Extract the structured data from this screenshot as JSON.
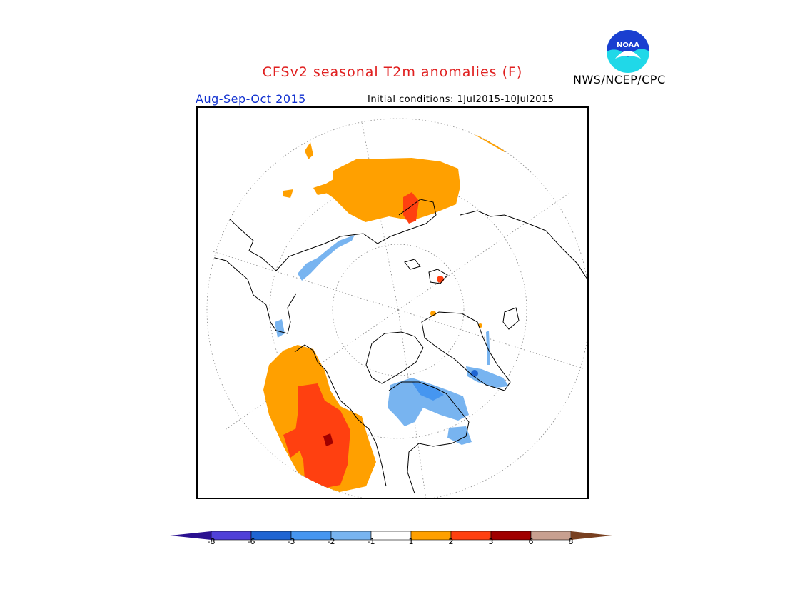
{
  "title": "CFSv2 seasonal T2m anomalies (F)",
  "agency": "NWS/NCEP/CPC",
  "season": "Aug-Sep-Oct 2015",
  "initial_conditions": "Initial conditions: 1Jul2015-10Jul2015",
  "logo": {
    "text": "NOAA",
    "colors": {
      "top": "#1a3fd0",
      "bottom": "#20d8e8"
    }
  },
  "legend": {
    "labels": [
      "-8",
      "-6",
      "-3",
      "-2",
      "-1",
      "1",
      "2",
      "3",
      "6",
      "8"
    ],
    "colors": [
      "#2a1090",
      "#5040d8",
      "#1e64d2",
      "#4696f0",
      "#78b4f0",
      "#ffffff",
      "#ffa000",
      "#ff4010",
      "#a00000",
      "#c8a090",
      "#784020"
    ]
  },
  "colors": {
    "warm1": "#ffa000",
    "warm2": "#ff4010",
    "warm3": "#a00000",
    "cool1": "#78b4f0",
    "cool2": "#4696f0",
    "cool3": "#1e64d2"
  }
}
